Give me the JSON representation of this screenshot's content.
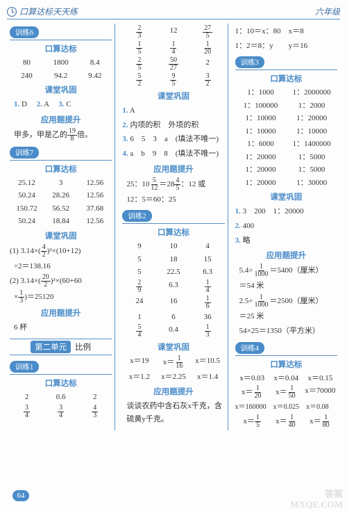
{
  "hdr": {
    "title": "口算达标天天练",
    "grade": "六年级"
  },
  "c1": {
    "t6": "训练6",
    "ksdb": "口算达标",
    "r1": [
      "80",
      "1800",
      "8.4"
    ],
    "r2": [
      "240",
      "94.2",
      "9.42"
    ],
    "ktgt": "课堂巩固",
    "kt1a": "1.",
    "kt1b": "D",
    "kt2a": "2.",
    "kt2b": "A",
    "kt3a": "3.",
    "kt3b": "C",
    "yyts": "应用题提升",
    "app6_a": "甲多，甲是乙的",
    "app6_b": "倍。",
    "t7": "训练7",
    "d1": [
      "25.12",
      "3",
      "12.56"
    ],
    "d2": [
      "50.24",
      "28.26",
      "12.56"
    ],
    "d3": [
      "150.72",
      "56.52",
      "37.68"
    ],
    "d4": [
      "50.24",
      "18.84",
      "12.56"
    ],
    "eq1a": "(1) 3.14×",
    "eq1b": "×(10+12)",
    "eq1c": "÷2＝138.16",
    "eq2a": "(2) 3.14×",
    "eq2b": "×(60+60",
    "eq2c": "×",
    "eq2d": "＝25120",
    "cup": "6 杯",
    "unit": "第二单元",
    "unitname": "比例",
    "t1": "训练1",
    "u1": [
      "2",
      "0.6",
      "2"
    ],
    "f1n": [
      "3",
      "3",
      "4"
    ],
    "f1d": [
      "4",
      "4",
      "3"
    ]
  },
  "c2": {
    "fr": [
      [
        "2",
        "3",
        "12",
        "27",
        "5"
      ],
      [
        "1",
        "5",
        "1",
        "4",
        "1",
        "20"
      ],
      [
        "2",
        "5",
        "50",
        "27",
        "2"
      ],
      [
        "5",
        "2",
        "9",
        "5",
        "3",
        "2"
      ]
    ],
    "ktgt": "课堂巩固",
    "q1a": "1.",
    "q1b": "A",
    "q2a": "2.",
    "q2b": "内项的积　外项的积",
    "q3a": "3.",
    "q3b": "6　5　3　a　(填法不唯一)",
    "q4a": "4.",
    "q4b": "a　b　9　8　(填法不唯一)",
    "yyts": "应用题提升",
    "app_a": "25：10",
    "app_b": "＝28",
    "app_c": "：12 或",
    "app2": "12：5＝60：25",
    "t2": "训练2",
    "ksdb": "口算达标",
    "g": [
      [
        "9",
        "10",
        "4"
      ],
      [
        "5",
        "18",
        "15"
      ],
      [
        "5",
        "22.5",
        "6.3"
      ]
    ],
    "gf": [
      [
        "2",
        "9",
        "6.3",
        "1",
        "4"
      ],
      [
        "24",
        "16",
        "1",
        "6"
      ]
    ],
    "gl": [
      "1",
      "6",
      "36"
    ],
    "gf2": [
      "5",
      "4",
      "0.4",
      "1",
      "3"
    ],
    "kt2r": [
      "x＝19",
      "x＝",
      "x＝10.5",
      "x＝1.2",
      "x＝2.25",
      "x＝1.4"
    ],
    "kt2f": [
      "1",
      "16"
    ],
    "appline": "谈谈农药中含石灰x千克，含硫黄y千克。"
  },
  "c3": {
    "top1": "1：10＝x：80　x＝8",
    "top2": "1：2＝8：y　　y＝16",
    "t3": "训练3",
    "ksdb": "口算达标",
    "rows": [
      [
        "1：1000",
        "1：2000000"
      ],
      [
        "1：100000",
        "1：2000"
      ],
      [
        "1：10000",
        "1：20000"
      ],
      [
        "1：10000",
        "1：10000"
      ],
      [
        "1：6000",
        "1：1400000"
      ],
      [
        "1：20000",
        "1：5000"
      ],
      [
        "1：20000",
        "1：5000"
      ],
      [
        "1：20000",
        "1：30000"
      ]
    ],
    "ktgt": "课堂巩固",
    "k1a": "1.",
    "k1b": "3　200　1：20000",
    "k2a": "2.",
    "k2b": "400",
    "k3a": "3.",
    "k3b": "略",
    "yyts": "应用题提升",
    "e1a": "5.4÷",
    "e1b": "＝5400（厘米）",
    "e1f": [
      "1",
      "1000"
    ],
    "e1c": "＝54 米",
    "e2a": "2.5÷",
    "e2b": "＝2500（厘米）",
    "e2c": "＝25 米",
    "e3": "54×25＝1350（平方米）",
    "t4": "训练4",
    "v": [
      [
        "x＝0.03",
        "x＝0.04",
        "x＝0.15"
      ]
    ],
    "vf1": [
      [
        "1",
        "20"
      ],
      [
        "1",
        "50"
      ]
    ],
    "vf1t": "x＝70000",
    "vl": "x＝160000　x＝0.025　x＝0.08",
    "vf2": [
      [
        "1",
        "5"
      ],
      [
        "1",
        "40"
      ],
      [
        "1",
        "80"
      ]
    ]
  },
  "page": "64",
  "wm1": "答案",
  "wm2": "MXQE.COM"
}
